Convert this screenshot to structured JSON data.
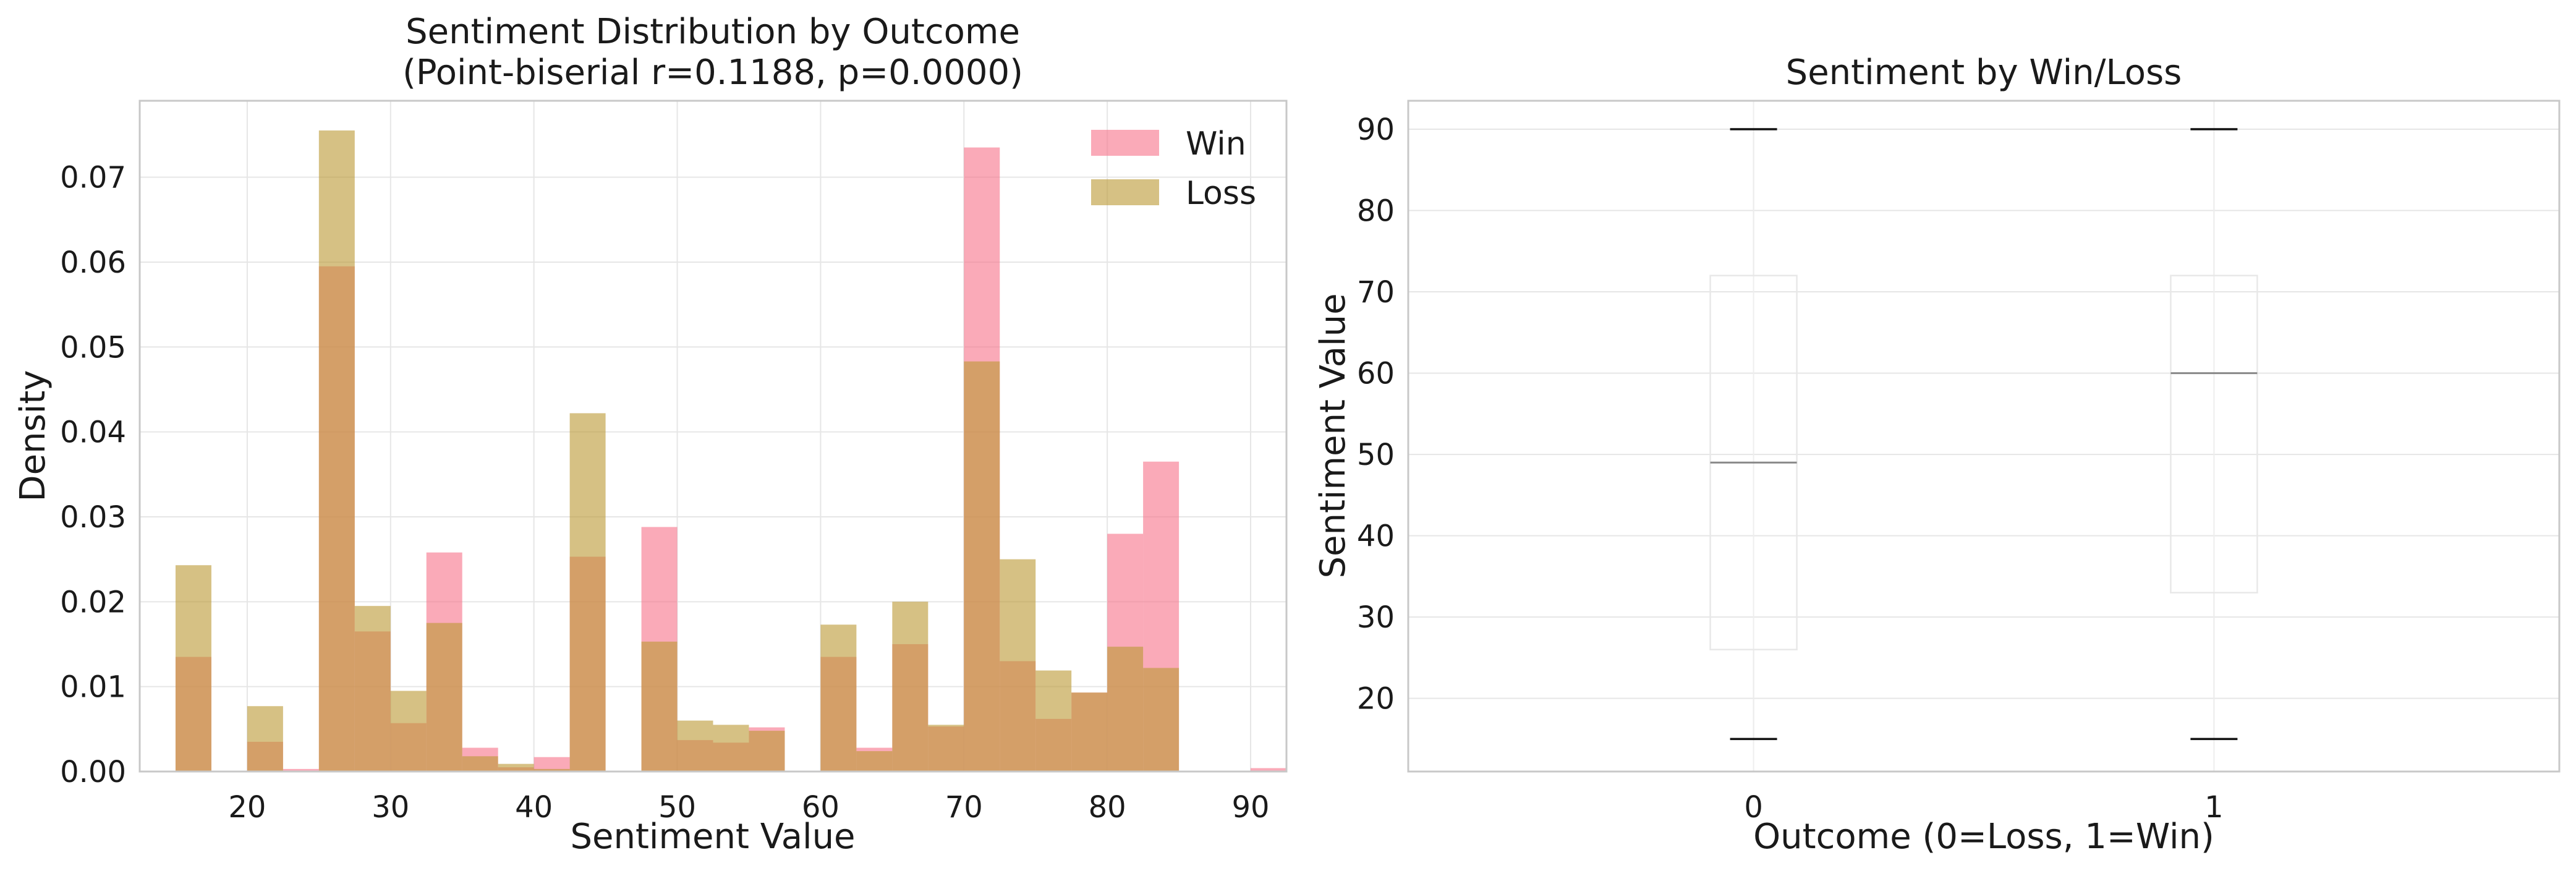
{
  "chart_data": [
    {
      "type": "bar",
      "title": "Sentiment Distribution by Outcome",
      "subtitle": "(Point-biserial r=0.1188, p=0.0000)",
      "xlabel": "Sentiment Value",
      "ylabel": "Density",
      "xlim": [
        12.5,
        92.5
      ],
      "ylim": [
        0,
        0.079
      ],
      "xticks": [
        20,
        30,
        40,
        50,
        60,
        70,
        80,
        90
      ],
      "xtick_labels": [
        "20",
        "30",
        "40",
        "50",
        "60",
        "70",
        "80",
        "90"
      ],
      "yticks": [
        0.0,
        0.01,
        0.02,
        0.03,
        0.04,
        0.05,
        0.06,
        0.07
      ],
      "ytick_labels": [
        "0.00",
        "0.01",
        "0.02",
        "0.03",
        "0.04",
        "0.05",
        "0.06",
        "0.07"
      ],
      "grid": true,
      "legend_position": "top-right",
      "bin_start": 15,
      "bin_width": 2.5,
      "series": [
        {
          "name": "Win",
          "color": "#f77189",
          "values": [
            0.0135,
            0.0,
            0.0035,
            0.0003,
            0.0595,
            0.0165,
            0.0057,
            0.0258,
            0.0028,
            0.0005,
            0.0017,
            0.0253,
            0.0,
            0.0288,
            0.0037,
            0.0034,
            0.0052,
            0.0,
            0.0135,
            0.0028,
            0.015,
            0.0053,
            0.0735,
            0.013,
            0.0062,
            0.0093,
            0.028,
            0.0365,
            0.0,
            0.0,
            0.0004
          ]
        },
        {
          "name": "Loss",
          "color": "#bb9832",
          "values": [
            0.0243,
            0.0,
            0.0077,
            0.0,
            0.0755,
            0.0195,
            0.0095,
            0.0175,
            0.0018,
            0.0009,
            0.0003,
            0.0422,
            0.0,
            0.0153,
            0.006,
            0.0055,
            0.0048,
            0.0,
            0.0173,
            0.0024,
            0.02,
            0.0055,
            0.0483,
            0.025,
            0.0119,
            0.0093,
            0.0147,
            0.0122,
            0.0,
            0.0,
            0.0
          ]
        }
      ]
    },
    {
      "type": "box",
      "title": "Sentiment by Win/Loss",
      "xlabel": "Outcome (0=Loss, 1=Win)",
      "ylabel": "Sentiment Value",
      "ylim": [
        11,
        93.5
      ],
      "yticks": [
        20,
        30,
        40,
        50,
        60,
        70,
        80,
        90
      ],
      "ytick_labels": [
        "20",
        "30",
        "40",
        "50",
        "60",
        "70",
        "80",
        "90"
      ],
      "categories": [
        "0",
        "1"
      ],
      "grid": true,
      "boxes": [
        {
          "category": "0",
          "whisker_low": 15,
          "q1": 26,
          "median": 49,
          "q3": 72,
          "whisker_high": 90
        },
        {
          "category": "1",
          "whisker_low": 15,
          "q1": 33,
          "median": 60,
          "q3": 72,
          "whisker_high": 90
        }
      ]
    }
  ]
}
